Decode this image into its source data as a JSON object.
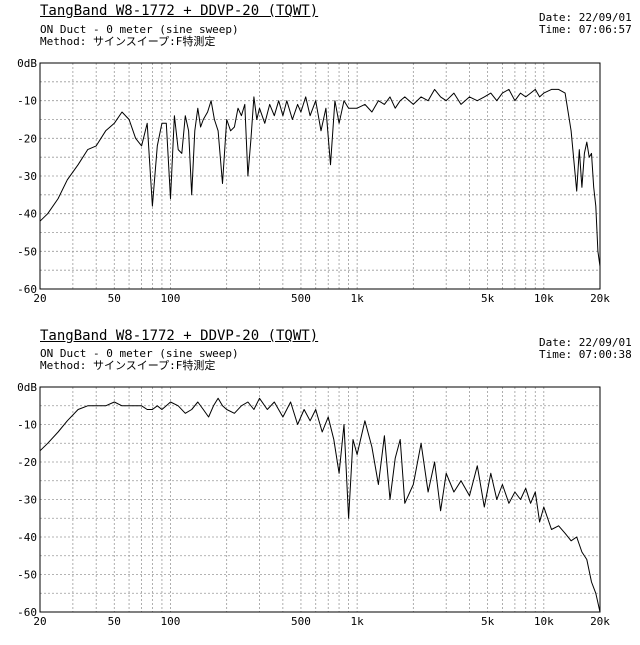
{
  "charts": [
    {
      "title": "TangBand W8-1772 + DDVP-20 (TQWT)",
      "line1": "ON Duct - 0 meter (sine sweep)",
      "line2": "Method: サインスイープ:F特測定",
      "date_label": "Date: 22/09/01",
      "time_label": "Time: 07:06:57"
    },
    {
      "title": "TangBand W8-1772 + DDVP-20 (TQWT)",
      "line1": "ON Duct - 0 meter (sine sweep)",
      "line2": "Method: サインスイープ:F特測定",
      "date_label": "Date: 22/09/01",
      "time_label": "Time: 07:00:38"
    }
  ],
  "chart_data": [
    {
      "type": "line",
      "title": "TangBand W8-1772 + DDVP-20 (TQWT)",
      "xscale": "log",
      "xlim": [
        20,
        20000
      ],
      "ylim": [
        -60,
        0
      ],
      "grid": true,
      "x_ticks": [
        20,
        50,
        100,
        500,
        1000,
        5000,
        10000,
        20000
      ],
      "x_tick_labels": [
        "20",
        "50",
        "100",
        "500",
        "1k",
        "5k",
        "10k",
        "20k"
      ],
      "y_ticks": [
        0,
        -10,
        -20,
        -30,
        -40,
        -50,
        -60
      ],
      "y_tick_labels": [
        "0dB",
        "-10",
        "-20",
        "-30",
        "-40",
        "-50",
        "-60"
      ],
      "series": [
        {
          "x": [
            20,
            22,
            25,
            28,
            32,
            36,
            40,
            45,
            50,
            55,
            60,
            65,
            70,
            75,
            80,
            85,
            90,
            95,
            100,
            105,
            110,
            115,
            120,
            125,
            130,
            135,
            140,
            145,
            150,
            158,
            165,
            172,
            180,
            190,
            200,
            210,
            220,
            230,
            240,
            250,
            260,
            270,
            280,
            290,
            300,
            320,
            340,
            360,
            380,
            400,
            420,
            450,
            480,
            500,
            530,
            560,
            600,
            640,
            680,
            720,
            760,
            800,
            850,
            900,
            950,
            1000,
            1100,
            1200,
            1300,
            1400,
            1500,
            1600,
            1700,
            1800,
            2000,
            2200,
            2400,
            2600,
            2800,
            3000,
            3300,
            3600,
            4000,
            4400,
            4800,
            5200,
            5600,
            6000,
            6500,
            7000,
            7500,
            8000,
            8500,
            9000,
            9500,
            10000,
            11000,
            12000,
            13000,
            14000,
            15000,
            15500,
            16000,
            16500,
            17000,
            17500,
            18000,
            18500,
            19000,
            19500,
            20000
          ],
          "y": [
            -42,
            -40,
            -36,
            -31,
            -27,
            -23,
            -22,
            -18,
            -16,
            -13,
            -15,
            -20,
            -22,
            -16,
            -38,
            -22,
            -16,
            -16,
            -36,
            -14,
            -23,
            -24,
            -14,
            -18,
            -35,
            -18,
            -12,
            -17,
            -15,
            -13,
            -10,
            -15,
            -18,
            -32,
            -15,
            -18,
            -17,
            -12,
            -14,
            -11,
            -30,
            -20,
            -9,
            -15,
            -12,
            -16,
            -11,
            -14,
            -10,
            -14,
            -10,
            -15,
            -11,
            -13,
            -9,
            -14,
            -10,
            -18,
            -12,
            -27,
            -10,
            -16,
            -10,
            -12,
            -12,
            -12,
            -11,
            -13,
            -10,
            -11,
            -9,
            -12,
            -10,
            -9,
            -11,
            -9,
            -10,
            -7,
            -9,
            -10,
            -8,
            -11,
            -9,
            -10,
            -9,
            -8,
            -10,
            -8,
            -7,
            -10,
            -8,
            -9,
            -8,
            -7,
            -9,
            -8,
            -7,
            -7,
            -8,
            -18,
            -34,
            -23,
            -33,
            -24,
            -21,
            -25,
            -24,
            -33,
            -38,
            -50,
            -54
          ]
        }
      ]
    },
    {
      "type": "line",
      "title": "TangBand W8-1772 + DDVP-20 (TQWT)",
      "xscale": "log",
      "xlim": [
        20,
        20000
      ],
      "ylim": [
        -60,
        0
      ],
      "grid": true,
      "x_ticks": [
        20,
        50,
        100,
        500,
        1000,
        5000,
        10000,
        20000
      ],
      "x_tick_labels": [
        "20",
        "50",
        "100",
        "500",
        "1k",
        "5k",
        "10k",
        "20k"
      ],
      "y_ticks": [
        0,
        -10,
        -20,
        -30,
        -40,
        -50,
        -60
      ],
      "y_tick_labels": [
        "0dB",
        "-10",
        "-20",
        "-30",
        "-40",
        "-50",
        "-60"
      ],
      "series": [
        {
          "x": [
            20,
            22,
            25,
            28,
            32,
            36,
            40,
            45,
            50,
            55,
            60,
            65,
            70,
            75,
            80,
            85,
            90,
            95,
            100,
            110,
            120,
            130,
            140,
            150,
            160,
            170,
            180,
            190,
            200,
            220,
            240,
            260,
            280,
            300,
            330,
            360,
            400,
            440,
            480,
            520,
            560,
            600,
            650,
            700,
            750,
            800,
            850,
            900,
            950,
            1000,
            1100,
            1200,
            1300,
            1400,
            1500,
            1600,
            1700,
            1800,
            2000,
            2200,
            2400,
            2600,
            2800,
            3000,
            3300,
            3600,
            4000,
            4400,
            4800,
            5200,
            5600,
            6000,
            6500,
            7000,
            7500,
            8000,
            8500,
            9000,
            9500,
            10000,
            11000,
            12000,
            13000,
            14000,
            15000,
            16000,
            17000,
            18000,
            19000,
            20000
          ],
          "y": [
            -17,
            -15,
            -12,
            -9,
            -6,
            -5,
            -5,
            -5,
            -4,
            -5,
            -5,
            -5,
            -5,
            -6,
            -6,
            -5,
            -6,
            -5,
            -4,
            -5,
            -7,
            -6,
            -4,
            -6,
            -8,
            -5,
            -3,
            -5,
            -6,
            -7,
            -5,
            -4,
            -6,
            -3,
            -6,
            -4,
            -8,
            -4,
            -10,
            -6,
            -9,
            -6,
            -12,
            -8,
            -14,
            -23,
            -10,
            -35,
            -14,
            -18,
            -9,
            -16,
            -26,
            -13,
            -30,
            -19,
            -14,
            -31,
            -26,
            -15,
            -28,
            -20,
            -33,
            -23,
            -28,
            -25,
            -29,
            -21,
            -32,
            -23,
            -30,
            -26,
            -31,
            -28,
            -30,
            -27,
            -31,
            -28,
            -36,
            -32,
            -38,
            -37,
            -39,
            -41,
            -40,
            -44,
            -46,
            -52,
            -55,
            -60
          ]
        }
      ]
    }
  ]
}
